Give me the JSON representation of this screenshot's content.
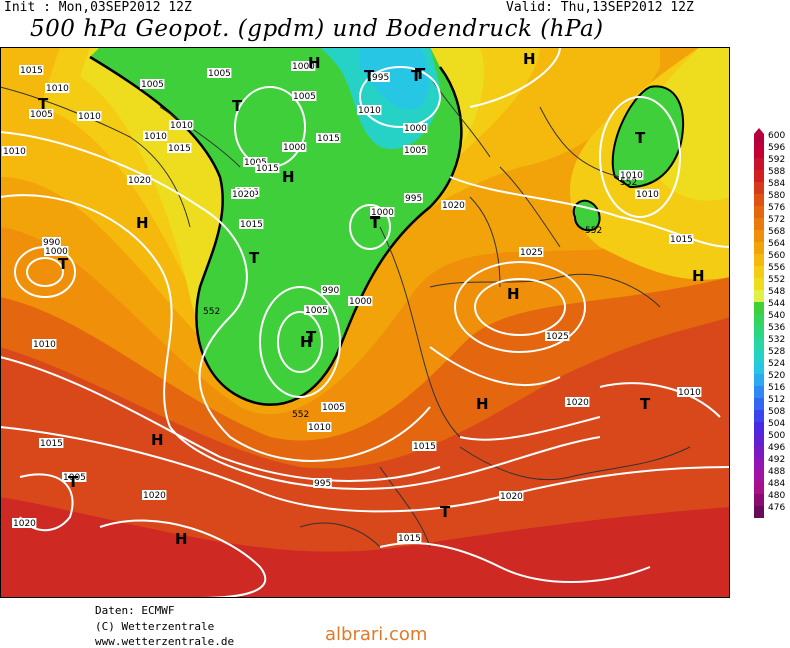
{
  "header": {
    "init": "Init : Mon,03SEP2012 12Z",
    "valid": "Valid: Thu,13SEP2012 12Z",
    "title": "500 hPa Geopot. (gpdm) und Bodendruck (hPa)"
  },
  "footer": {
    "line1": "Daten: ECMWF",
    "line2": "(C) Wetterzentrale",
    "line3": "www.wetterzentrale.de"
  },
  "watermark": "albrari.com",
  "legend": {
    "levels": [
      "600",
      "596",
      "592",
      "588",
      "584",
      "580",
      "576",
      "572",
      "568",
      "564",
      "560",
      "556",
      "552",
      "548",
      "544",
      "540",
      "536",
      "532",
      "528",
      "524",
      "520",
      "516",
      "512",
      "508",
      "504",
      "500",
      "496",
      "492",
      "488",
      "484",
      "480",
      "476"
    ],
    "colors": [
      "#b5003d",
      "#c20033",
      "#c9102c",
      "#d02020",
      "#d73a1a",
      "#de5214",
      "#e4660f",
      "#ea7a0c",
      "#ef8f0a",
      "#f3a30a",
      "#f5b80c",
      "#f4cc14",
      "#eedd1e",
      "#dff046",
      "#3fcf3a",
      "#35d45a",
      "#2dd67e",
      "#28d6a4",
      "#26d2c6",
      "#26c6e4",
      "#2aaaf0",
      "#2f88f4",
      "#3366f4",
      "#3a45f0",
      "#4a28e4",
      "#6220d4",
      "#7a1ac4",
      "#9216b4",
      "#a212a4",
      "#a8108a",
      "#8a0c72",
      "#6a0a5a"
    ]
  },
  "map": {
    "pressure_labels": [
      "1015",
      "1010",
      "1005",
      "1010",
      "1005",
      "1010",
      "1015",
      "1020",
      "1015",
      "1010",
      "1005",
      "1000",
      "995",
      "1005",
      "1010",
      "1000",
      "1005",
      "1015",
      "1020",
      "1015",
      "1000",
      "1005",
      "1000",
      "995",
      "990",
      "1000",
      "1005",
      "1010",
      "995",
      "990",
      "1000",
      "1005",
      "1020",
      "1025",
      "1025",
      "1020",
      "1010",
      "1015",
      "1010",
      "1020",
      "1020",
      "1015",
      "1015",
      "1010",
      "1010",
      "1015",
      "1020",
      "1005",
      "1010",
      "1015"
    ],
    "contour_labels_552": [
      "552",
      "552",
      "552",
      "552"
    ],
    "highs": [
      "H",
      "H",
      "H",
      "H",
      "H",
      "H",
      "H",
      "H",
      "H",
      "H"
    ],
    "lows": [
      "T",
      "T",
      "T",
      "T",
      "T",
      "T",
      "T",
      "T",
      "T",
      "T",
      "T",
      "T",
      "T",
      "T"
    ]
  }
}
